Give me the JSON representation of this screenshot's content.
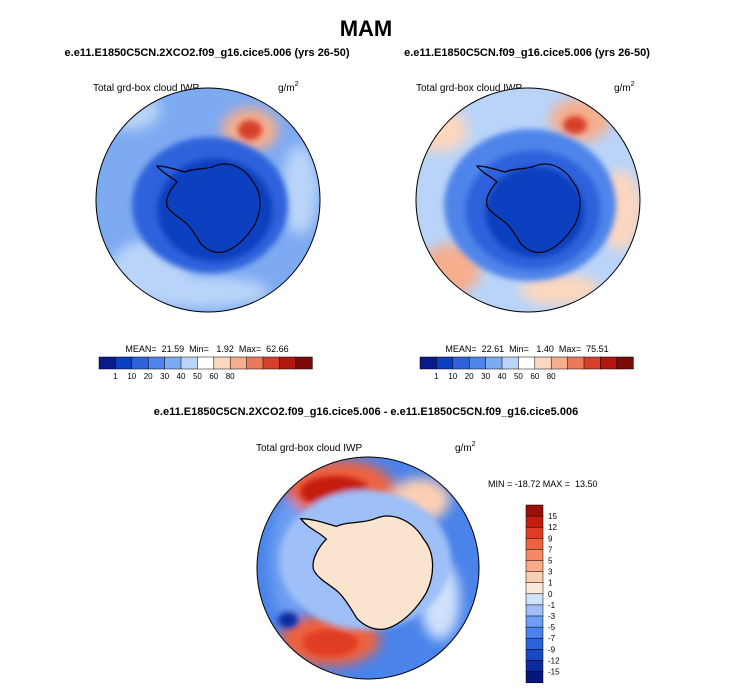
{
  "colors": {
    "ice": "#fbe4cf",
    "land_outline": "#000000",
    "abs_levels": [
      "#0a1a8c",
      "#0b3fc0",
      "#2f62dc",
      "#4f84ea",
      "#7eaaf2",
      "#b9d4f8",
      "#ffffff",
      "#fbd7bf",
      "#f6ae8d",
      "#ea7a5a",
      "#d6402a",
      "#b3150f",
      "#7a0a06"
    ],
    "diff_levels": [
      "#08167a",
      "#0a2c9f",
      "#1848c6",
      "#2d64dd",
      "#4a83ea",
      "#6e9ff2",
      "#9ebff7",
      "#cfe1fb",
      "#fde9da",
      "#fbcfb3",
      "#f8ad88",
      "#f58963",
      "#ef6240",
      "#e03e22",
      "#c41c0d",
      "#981008"
    ]
  },
  "chart_data": [
    {
      "type": "polar_contour",
      "figure_title": "MAM",
      "title": "e.e11.E1850C5CN.2XCO2.f09_g16.cice5.006 (yrs 26-50)",
      "variable": "Total grd-box cloud IWP",
      "units": "g/m",
      "units_sup": "2",
      "stats": {
        "mean": 21.59,
        "min": 1.92,
        "max": 62.66
      },
      "stats_text": "MEAN=  21.59  Min=   1.92  Max=  62.66",
      "colorbar": {
        "orientation": "horizontal",
        "levels": [
          1,
          10,
          20,
          30,
          40,
          50,
          60,
          80
        ]
      }
    },
    {
      "type": "polar_contour",
      "title": "e.e11.E1850C5CN.f09_g16.cice5.006 (yrs 26-50)",
      "variable": "Total grd-box cloud IWP",
      "units": "g/m",
      "units_sup": "2",
      "stats": {
        "mean": 22.61,
        "min": 1.4,
        "max": 75.51
      },
      "stats_text": "MEAN=  22.61  Min=   1.40  Max=  75.51",
      "colorbar": {
        "orientation": "horizontal",
        "levels": [
          1,
          10,
          20,
          30,
          40,
          50,
          60,
          80
        ]
      }
    },
    {
      "type": "polar_contour_difference",
      "title": "e.e11.E1850C5CN.2XCO2.f09_g16.cice5.006 - e.e11.E1850C5CN.f09_g16.cice5.006",
      "variable": "Total grd-box cloud IWP",
      "units": "g/m",
      "units_sup": "2",
      "stats": {
        "min": -18.72,
        "max": 13.5
      },
      "stats_text": "MIN = -18.72 MAX =  13.50",
      "colorbar": {
        "orientation": "vertical",
        "levels": [
          15,
          12,
          9,
          7,
          5,
          3,
          1,
          0,
          -1,
          -3,
          -5,
          -7,
          -9,
          -12,
          -15
        ]
      }
    }
  ]
}
